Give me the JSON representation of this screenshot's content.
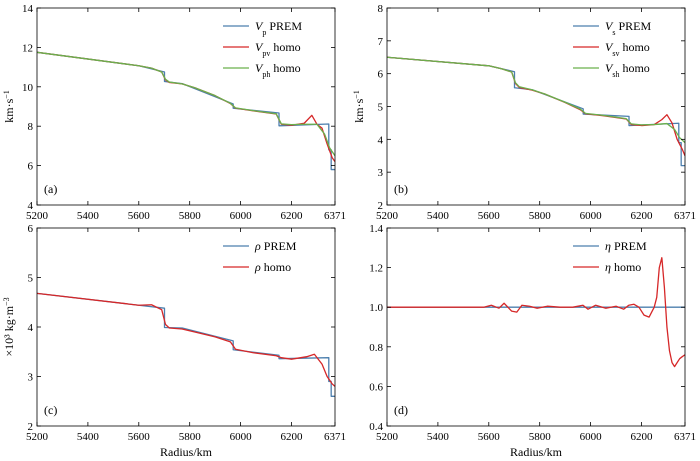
{
  "figure": {
    "colors": {
      "prem": "#4c7fae",
      "vertical": "#d62728",
      "horizontal": "#6ab04c",
      "frame": "#000000"
    }
  },
  "chart_data": [
    {
      "type": "line",
      "panel": "(a)",
      "ylabel_html": "km·s<tspan baseline-shift='super' font-size='8'>−1</tspan>",
      "ylabel": "km·s-1",
      "xlabel": "",
      "xlim": [
        5200,
        6371
      ],
      "ylim": [
        4,
        14
      ],
      "xticks": [
        "5200",
        "5400",
        "5600",
        "5800",
        "6000",
        "6200",
        "6371"
      ],
      "yticks": [
        "4",
        "6",
        "8",
        "10",
        "12",
        "14"
      ],
      "legend": [
        {
          "sym": "V",
          "sub": "p",
          "suffix": "PREM",
          "color": "prem"
        },
        {
          "sym": "V",
          "sub": "pv",
          "suffix": "homo",
          "color": "vertical"
        },
        {
          "sym": "V",
          "sub": "ph",
          "suffix": "homo",
          "color": "horizontal"
        }
      ],
      "series": [
        {
          "name": "Vp PREM",
          "color": "prem",
          "step": true,
          "x": [
            5200,
            5600,
            5701,
            5701,
            5771,
            5771,
            5971,
            5971,
            6151,
            6151,
            6346.6,
            6346.6,
            6356,
            6356,
            6371
          ],
          "y": [
            11.75,
            11.07,
            10.75,
            10.27,
            10.16,
            10.16,
            9.13,
            8.91,
            8.67,
            8.02,
            8.11,
            6.8,
            6.8,
            5.8,
            5.8
          ]
        },
        {
          "name": "Vpv homo",
          "color": "vertical",
          "x": [
            5200,
            5600,
            5650,
            5690,
            5705,
            5720,
            5770,
            5820,
            5900,
            5960,
            5980,
            6050,
            6140,
            6160,
            6200,
            6250,
            6280,
            6300,
            6320,
            6340,
            6360,
            6371
          ],
          "y": [
            11.75,
            11.07,
            10.95,
            10.75,
            10.35,
            10.22,
            10.15,
            9.95,
            9.55,
            9.15,
            8.92,
            8.78,
            8.62,
            8.1,
            8.05,
            8.15,
            8.55,
            8.1,
            7.9,
            7.1,
            6.4,
            6.2
          ]
        },
        {
          "name": "Vph homo",
          "color": "horizontal",
          "x": [
            5200,
            5600,
            5650,
            5690,
            5705,
            5720,
            5770,
            5820,
            5900,
            5960,
            5980,
            6050,
            6140,
            6160,
            6200,
            6250,
            6300,
            6330,
            6350,
            6371
          ],
          "y": [
            11.75,
            11.07,
            10.95,
            10.75,
            10.38,
            10.24,
            10.15,
            9.95,
            9.55,
            9.16,
            8.93,
            8.79,
            8.63,
            8.12,
            8.08,
            8.1,
            8.1,
            7.6,
            6.9,
            6.5
          ]
        }
      ]
    },
    {
      "type": "line",
      "panel": "(b)",
      "ylabel": "km·s-1",
      "xlabel": "",
      "xlim": [
        5200,
        6371
      ],
      "ylim": [
        2,
        8
      ],
      "xticks": [
        "5200",
        "5400",
        "5600",
        "5800",
        "6000",
        "6200",
        "6371"
      ],
      "yticks": [
        "2",
        "3",
        "4",
        "5",
        "6",
        "7",
        "8"
      ],
      "legend": [
        {
          "sym": "V",
          "sub": "s",
          "suffix": "PREM",
          "color": "prem"
        },
        {
          "sym": "V",
          "sub": "sv",
          "suffix": "homo",
          "color": "vertical"
        },
        {
          "sym": "V",
          "sub": "sh",
          "suffix": "homo",
          "color": "horizontal"
        }
      ],
      "series": [
        {
          "name": "Vs PREM",
          "color": "prem",
          "step": true,
          "x": [
            5200,
            5600,
            5701,
            5701,
            5771,
            5771,
            5971,
            5971,
            6151,
            6151,
            6346.6,
            6346.6,
            6356,
            6356,
            6371
          ],
          "y": [
            6.5,
            6.24,
            6.06,
            5.57,
            5.51,
            5.51,
            4.93,
            4.77,
            4.7,
            4.42,
            4.49,
            3.9,
            3.9,
            3.2,
            3.2
          ]
        },
        {
          "name": "Vsv homo",
          "color": "vertical",
          "x": [
            5200,
            5600,
            5650,
            5690,
            5705,
            5720,
            5770,
            5820,
            5900,
            5960,
            5980,
            6050,
            6140,
            6160,
            6200,
            6250,
            6280,
            6300,
            6320,
            6340,
            6360,
            6371
          ],
          "y": [
            6.5,
            6.24,
            6.15,
            6.05,
            5.7,
            5.58,
            5.5,
            5.38,
            5.12,
            4.9,
            4.78,
            4.72,
            4.62,
            4.45,
            4.42,
            4.45,
            4.6,
            4.75,
            4.5,
            4.0,
            3.7,
            3.5
          ]
        },
        {
          "name": "Vsh homo",
          "color": "horizontal",
          "x": [
            5200,
            5600,
            5650,
            5690,
            5705,
            5720,
            5770,
            5820,
            5900,
            5960,
            5980,
            6050,
            6140,
            6160,
            6200,
            6250,
            6300,
            6330,
            6350,
            6371
          ],
          "y": [
            6.5,
            6.24,
            6.15,
            6.05,
            5.72,
            5.6,
            5.51,
            5.38,
            5.13,
            4.92,
            4.79,
            4.73,
            4.63,
            4.47,
            4.44,
            4.45,
            4.48,
            4.3,
            4.05,
            3.9
          ]
        }
      ]
    },
    {
      "type": "line",
      "panel": "(c)",
      "ylabel": "×10³ kg·m-3",
      "xlabel": "Radius/km",
      "xlim": [
        5200,
        6371
      ],
      "ylim": [
        2,
        6
      ],
      "xticks": [
        "5200",
        "5400",
        "5600",
        "5800",
        "6000",
        "6200",
        "6371"
      ],
      "yticks": [
        "2",
        "3",
        "4",
        "5",
        "6"
      ],
      "legend": [
        {
          "sym": "ρ",
          "sub": "",
          "suffix": "PREM",
          "color": "prem"
        },
        {
          "sym": "ρ",
          "sub": "",
          "suffix": "homo",
          "color": "vertical"
        }
      ],
      "series": [
        {
          "name": "rho PREM",
          "color": "prem",
          "step": true,
          "x": [
            5200,
            5600,
            5701,
            5701,
            5771,
            5771,
            5971,
            5971,
            6151,
            6151,
            6346.6,
            6346.6,
            6356,
            6356,
            6371
          ],
          "y": [
            4.68,
            4.44,
            4.38,
            3.99,
            3.98,
            3.98,
            3.72,
            3.54,
            3.43,
            3.36,
            3.38,
            2.9,
            2.9,
            2.6,
            2.6
          ]
        },
        {
          "name": "rho homo",
          "color": "vertical",
          "x": [
            5200,
            5600,
            5650,
            5690,
            5705,
            5720,
            5770,
            5820,
            5900,
            5960,
            5980,
            6050,
            6140,
            6160,
            6200,
            6260,
            6290,
            6320,
            6340,
            6360,
            6371
          ],
          "y": [
            4.68,
            4.44,
            4.45,
            4.35,
            4.05,
            3.98,
            3.96,
            3.9,
            3.8,
            3.7,
            3.55,
            3.48,
            3.42,
            3.38,
            3.35,
            3.4,
            3.45,
            3.25,
            3.0,
            2.85,
            2.8
          ]
        }
      ]
    },
    {
      "type": "line",
      "panel": "(d)",
      "ylabel": "",
      "xlabel": "Radius/km",
      "xlim": [
        5200,
        6371
      ],
      "ylim": [
        0.4,
        1.4
      ],
      "xticks": [
        "5200",
        "5400",
        "5600",
        "5800",
        "6000",
        "6200",
        "6371"
      ],
      "yticks": [
        "0.4",
        "0.6",
        "0.8",
        "1.0",
        "1.2",
        "1.4"
      ],
      "legend": [
        {
          "sym": "η",
          "sub": "",
          "suffix": "PREM",
          "color": "prem"
        },
        {
          "sym": "η",
          "sub": "",
          "suffix": "homo",
          "color": "vertical"
        }
      ],
      "series": [
        {
          "name": "eta PREM",
          "color": "prem",
          "x": [
            5200,
            6371
          ],
          "y": [
            1.0,
            1.0
          ]
        },
        {
          "name": "eta homo",
          "color": "vertical",
          "x": [
            5200,
            5580,
            5610,
            5640,
            5660,
            5690,
            5710,
            5730,
            5760,
            5790,
            5830,
            5880,
            5930,
            5970,
            5990,
            6020,
            6060,
            6100,
            6130,
            6150,
            6170,
            6190,
            6210,
            6230,
            6250,
            6260,
            6270,
            6280,
            6290,
            6300,
            6310,
            6320,
            6330,
            6340,
            6350,
            6360,
            6371
          ],
          "y": [
            1.0,
            1.0,
            1.01,
            0.995,
            1.02,
            0.98,
            0.975,
            1.01,
            1.005,
            0.995,
            1.005,
            1.0,
            1.0,
            1.01,
            0.99,
            1.01,
            0.995,
            1.005,
            0.99,
            1.01,
            1.015,
            1.0,
            0.96,
            0.95,
            1.0,
            1.05,
            1.2,
            1.25,
            1.1,
            0.9,
            0.78,
            0.72,
            0.7,
            0.72,
            0.74,
            0.75,
            0.76
          ]
        }
      ]
    }
  ]
}
